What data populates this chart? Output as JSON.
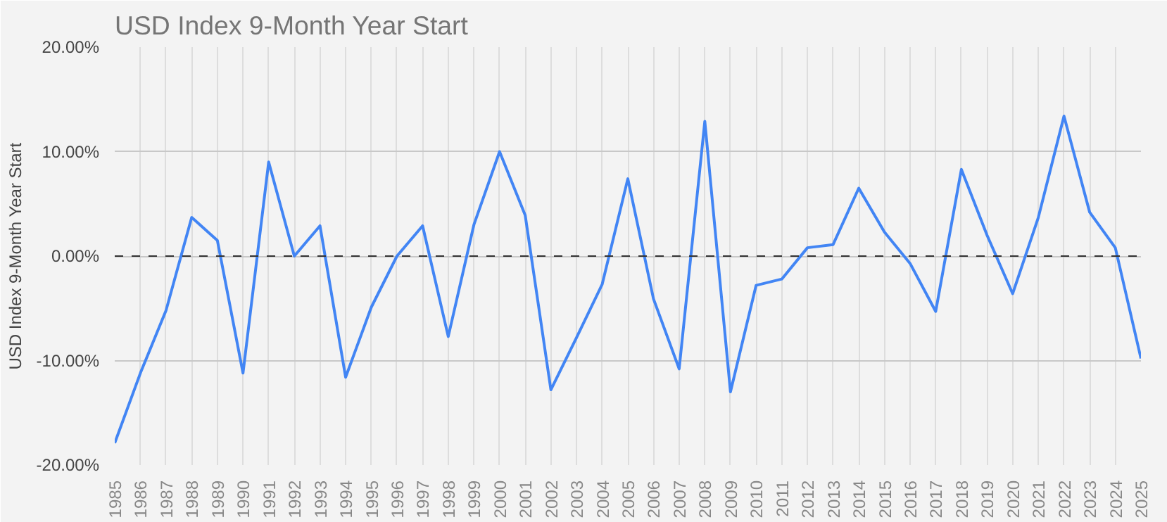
{
  "chart_data": {
    "type": "line",
    "title": "USD Index 9-Month Year Start",
    "ylabel": "USD Index 9-Month Year Start",
    "categories": [
      "1985",
      "1986",
      "1987",
      "1988",
      "1989",
      "1990",
      "1991",
      "1992",
      "1993",
      "1994",
      "1995",
      "1996",
      "1997",
      "1998",
      "1999",
      "2000",
      "2001",
      "2002",
      "2003",
      "2004",
      "2005",
      "2006",
      "2007",
      "2008",
      "2009",
      "2010",
      "2011",
      "2012",
      "2013",
      "2014",
      "2015",
      "2016",
      "2017",
      "2018",
      "2019",
      "2020",
      "2021",
      "2022",
      "2023",
      "2024",
      "2025"
    ],
    "series": [
      {
        "color": "#4285f4",
        "values": [
          -17.9,
          -11.2,
          -5.2,
          3.7,
          1.5,
          -11.2,
          9.0,
          0.0,
          2.9,
          -11.6,
          -4.9,
          0.0,
          2.9,
          -7.7,
          3.0,
          10.0,
          3.9,
          -12.8,
          -7.8,
          -2.7,
          7.4,
          -4.1,
          -10.8,
          12.9,
          -13.0,
          -2.8,
          -2.2,
          0.8,
          1.1,
          6.5,
          2.3,
          -0.7,
          -5.3,
          8.3,
          2.0,
          -3.6,
          3.7,
          13.4,
          4.2,
          0.8,
          -9.8
        ]
      }
    ],
    "ylim": [
      -20,
      20
    ],
    "yticks": [
      {
        "value": -20,
        "label": "-20.00%"
      },
      {
        "value": -10,
        "label": "-10.00%"
      },
      {
        "value": 0,
        "label": "0.00%"
      },
      {
        "value": 10,
        "label": "10.00%"
      },
      {
        "value": 20,
        "label": "20.00%"
      }
    ],
    "ref_lines": [
      {
        "axis": "y",
        "value": 0,
        "label": null,
        "color": "#333333",
        "line_style": "dashed"
      }
    ],
    "grid": true,
    "marker": "none",
    "line_style": "solid"
  }
}
